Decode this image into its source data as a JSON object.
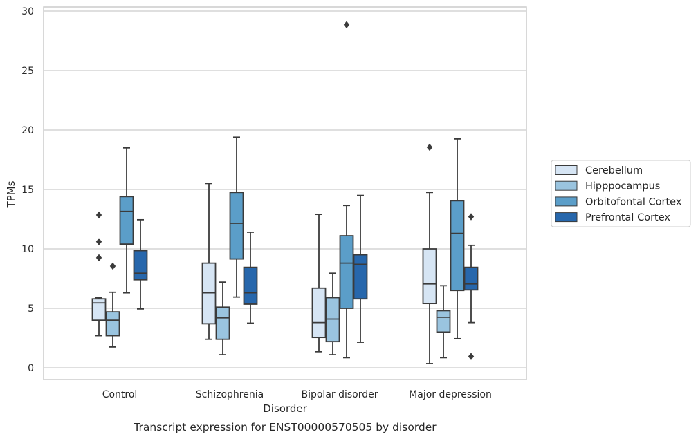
{
  "chart_data": {
    "type": "box",
    "title": "",
    "caption": "Transcript expression for ENST00000570505 by disorder",
    "xlabel": "Disorder",
    "ylabel": "TPMs",
    "ylim": [
      -0.9,
      30.3
    ],
    "yticks": [
      0,
      5,
      10,
      15,
      20,
      25,
      30
    ],
    "grid": "horizontal",
    "legend_placement": "right",
    "categories": [
      "Control",
      "Schizophrenia",
      "Bipolar disorder",
      "Major depression"
    ],
    "series": [
      {
        "name": "Cerebellum",
        "color": "#d6e5f4",
        "boxes": [
          {
            "whislo": 2.7,
            "q1": 4.0,
            "med": 5.45,
            "q3": 5.8,
            "whishi": 5.9,
            "fliers": [
              9.25,
              10.6,
              12.85
            ]
          },
          {
            "whislo": 2.4,
            "q1": 3.7,
            "med": 6.3,
            "q3": 8.8,
            "whishi": 15.5,
            "fliers": []
          },
          {
            "whislo": 1.35,
            "q1": 2.55,
            "med": 3.8,
            "q3": 6.7,
            "whishi": 12.9,
            "fliers": []
          },
          {
            "whislo": 0.35,
            "q1": 5.4,
            "med": 7.05,
            "q3": 10.0,
            "whishi": 14.75,
            "fliers": [
              18.55
            ]
          }
        ]
      },
      {
        "name": "Hipppocampus",
        "color": "#9ac4df",
        "boxes": [
          {
            "whislo": 1.75,
            "q1": 2.7,
            "med": 4.0,
            "q3": 4.7,
            "whishi": 6.35,
            "fliers": [
              8.55
            ]
          },
          {
            "whislo": 1.1,
            "q1": 2.4,
            "med": 4.2,
            "q3": 5.1,
            "whishi": 7.2,
            "fliers": []
          },
          {
            "whislo": 1.1,
            "q1": 2.2,
            "med": 4.1,
            "q3": 5.9,
            "whishi": 7.95,
            "fliers": []
          },
          {
            "whislo": 0.85,
            "q1": 3.0,
            "med": 4.25,
            "q3": 4.8,
            "whishi": 6.9,
            "fliers": []
          }
        ]
      },
      {
        "name": "Orbitofontal Cortex",
        "color": "#5b9ec9",
        "boxes": [
          {
            "whislo": 6.3,
            "q1": 10.4,
            "med": 13.15,
            "q3": 14.4,
            "whishi": 18.5,
            "fliers": []
          },
          {
            "whislo": 5.95,
            "q1": 9.15,
            "med": 12.15,
            "q3": 14.75,
            "whishi": 19.4,
            "fliers": []
          },
          {
            "whislo": 0.85,
            "q1": 5.0,
            "med": 8.8,
            "q3": 11.1,
            "whishi": 13.65,
            "fliers": [
              28.85
            ]
          },
          {
            "whislo": 2.45,
            "q1": 6.5,
            "med": 11.3,
            "q3": 14.05,
            "whishi": 19.25,
            "fliers": []
          }
        ]
      },
      {
        "name": "Prefrontal Cortex",
        "color": "#2767ac",
        "boxes": [
          {
            "whislo": 4.95,
            "q1": 7.4,
            "med": 7.95,
            "q3": 9.85,
            "whishi": 12.45,
            "fliers": []
          },
          {
            "whislo": 3.75,
            "q1": 5.35,
            "med": 6.3,
            "q3": 8.45,
            "whishi": 11.4,
            "fliers": []
          },
          {
            "whislo": 2.15,
            "q1": 5.8,
            "med": 8.7,
            "q3": 9.5,
            "whishi": 14.5,
            "fliers": []
          },
          {
            "whislo": 3.8,
            "q1": 6.55,
            "med": 7.05,
            "q3": 8.45,
            "whishi": 10.3,
            "fliers": [
              0.95,
              12.7
            ]
          }
        ]
      }
    ]
  }
}
